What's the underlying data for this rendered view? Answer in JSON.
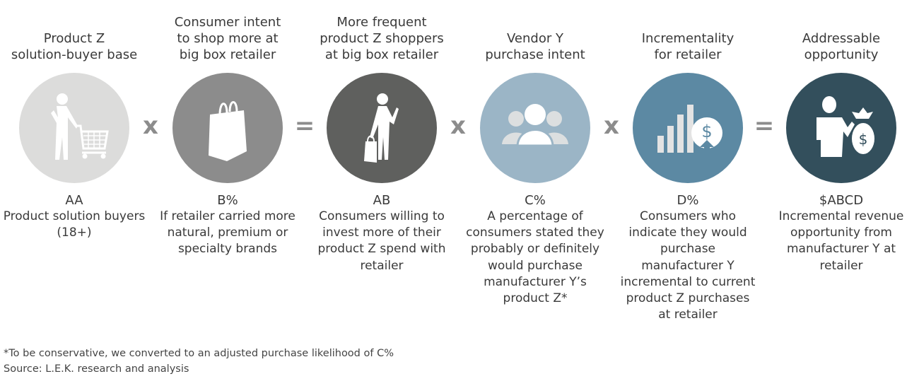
{
  "steps": [
    {
      "title": "Product Z\nsolution-buyer base",
      "value": "AA",
      "description": "Product solution buyers\n(18+)",
      "color": "#dcdcdb",
      "icon": "shopper-with-cart-icon"
    },
    {
      "title": "Consumer intent\nto shop more at\nbig box retailer",
      "value": "B%",
      "description": "If retailer carried more\nnatural, premium or\nspecialty brands",
      "color": "#8c8c8c",
      "icon": "shopping-bag-icon"
    },
    {
      "title": "More frequent\nproduct Z shoppers\nat big box retailer",
      "value": "AB",
      "description": "Consumers willing to\ninvest more of their\nproduct Z spend with\nretailer",
      "color": "#5f605e",
      "icon": "person-with-bag-icon"
    },
    {
      "title": "Vendor Y\npurchase intent",
      "value": "C%",
      "description": "A percentage of\nconsumers stated they\nprobably or definitely\nwould purchase\nmanufacturer Y’s\nproduct Z*",
      "color": "#9bb5c6",
      "icon": "group-of-people-icon"
    },
    {
      "title": "Incrementality\nfor retailer",
      "value": "D%",
      "description": "Consumers who\nindicate they would\npurchase\nmanufacturer Y\nincremental to current\nproduct Z purchases\nat retailer",
      "color": "#5c89a3",
      "icon": "bar-chart-dollar-icon"
    },
    {
      "title": "Addressable\nopportunity",
      "value": "$ABCD",
      "description": "Incremental revenue\nopportunity from\nmanufacturer Y at\nretailer",
      "color": "#334f5c",
      "icon": "businessman-money-bag-icon"
    }
  ],
  "operators": [
    "x",
    "=",
    "x",
    "x",
    "="
  ],
  "footnote": "*To be conservative, we converted to an adjusted purchase likelihood of C%",
  "source": "Source: L.E.K. research and analysis"
}
